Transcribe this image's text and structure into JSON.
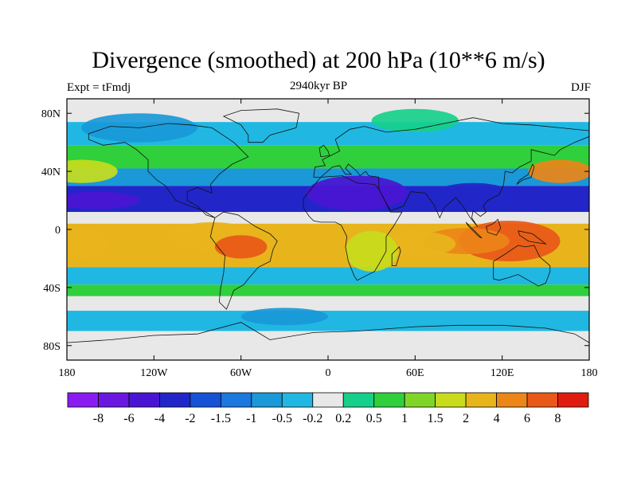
{
  "chart_data": {
    "type": "heatmap",
    "title": "Divergence (smoothed) at 200 hPa (10**6 m/s)",
    "subtitle_left": "Expt = tFmdj",
    "subtitle_center": "2940kyr BP",
    "subtitle_right": "DJF",
    "x_ticks": [
      "180",
      "120W",
      "60W",
      "0",
      "60E",
      "120E",
      "180"
    ],
    "y_ticks": [
      "80N",
      "40N",
      "0",
      "40S",
      "80S"
    ],
    "x_range": [
      -180,
      180
    ],
    "y_range": [
      -90,
      90
    ],
    "colorbar": {
      "labels": [
        "-8",
        "-6",
        "-4",
        "-2",
        "-1.5",
        "-1",
        "-0.5",
        "-0.2",
        "0.2",
        "0.5",
        "1",
        "1.5",
        "2",
        "4",
        "6",
        "8"
      ],
      "colors": [
        "#8a1cf2",
        "#6a18e0",
        "#4a15d2",
        "#2226c8",
        "#1552d6",
        "#1a78de",
        "#1a98d8",
        "#20b8e2",
        "#e8e8e8",
        "#16cf8a",
        "#30cf3c",
        "#80d628",
        "#c8dc1c",
        "#e8b41c",
        "#ec8618",
        "#e85818",
        "#e01c10"
      ]
    },
    "bands": [
      {
        "lat_max": 90,
        "lat_min": 74,
        "level": 8
      },
      {
        "lat_max": 74,
        "lat_min": 58,
        "level": 7
      },
      {
        "lat_max": 58,
        "lat_min": 42,
        "level": 10
      },
      {
        "lat_max": 42,
        "lat_min": 30,
        "level": 6
      },
      {
        "lat_max": 30,
        "lat_min": 12,
        "level": 3
      },
      {
        "lat_max": 12,
        "lat_min": 4,
        "level": 8
      },
      {
        "lat_max": 4,
        "lat_min": -26,
        "level": 13
      },
      {
        "lat_max": -26,
        "lat_min": -38,
        "level": 7
      },
      {
        "lat_max": -38,
        "lat_min": -46,
        "level": 10
      },
      {
        "lat_max": -46,
        "lat_min": -56,
        "level": 8
      },
      {
        "lat_max": -56,
        "lat_min": -70,
        "level": 7
      },
      {
        "lat_max": -70,
        "lat_min": -90,
        "level": 8
      }
    ],
    "blobs": [
      {
        "lon": 125,
        "lat": -8,
        "rlon": 35,
        "rlat": 14,
        "level": 15
      },
      {
        "lon": 95,
        "lat": -8,
        "rlon": 30,
        "rlat": 9,
        "level": 14
      },
      {
        "lon": 60,
        "lat": -10,
        "rlon": 28,
        "rlat": 9,
        "level": 13
      },
      {
        "lon": -80,
        "lat": -5,
        "rlon": 30,
        "rlat": 10,
        "level": 13
      },
      {
        "lon": -60,
        "lat": -12,
        "rlon": 18,
        "rlat": 8,
        "level": 15
      },
      {
        "lon": -170,
        "lat": -10,
        "rlon": 20,
        "rlat": 10,
        "level": 13
      },
      {
        "lon": 30,
        "lat": -15,
        "rlon": 18,
        "rlat": 14,
        "level": 12
      },
      {
        "lon": -170,
        "lat": 40,
        "rlon": 25,
        "rlat": 8,
        "level": 12
      },
      {
        "lon": 160,
        "lat": 40,
        "rlon": 22,
        "rlat": 8,
        "level": 14
      },
      {
        "lon": 20,
        "lat": 25,
        "rlon": 35,
        "rlat": 12,
        "level": 2
      },
      {
        "lon": -160,
        "lat": 20,
        "rlon": 30,
        "rlat": 6,
        "level": 2
      },
      {
        "lon": 100,
        "lat": 22,
        "rlon": 30,
        "rlat": 10,
        "level": 3
      },
      {
        "lon": -130,
        "lat": 70,
        "rlon": 40,
        "rlat": 10,
        "level": 6
      },
      {
        "lon": -30,
        "lat": -60,
        "rlon": 30,
        "rlat": 6,
        "level": 6
      },
      {
        "lon": 60,
        "lat": 75,
        "rlon": 30,
        "rlat": 8,
        "level": 9
      }
    ]
  }
}
